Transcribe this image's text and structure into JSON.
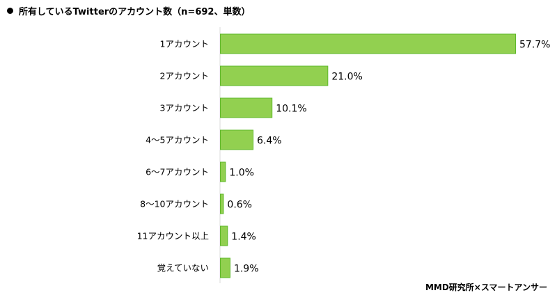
{
  "chart_data": {
    "type": "bar",
    "orientation": "horizontal",
    "title": "所有しているTwitterのアカウント数（n=692、単数）",
    "categories": [
      "1アカウント",
      "2アカウント",
      "3アカウント",
      "4～5アカウント",
      "6～7アカウント",
      "8～10アカウント",
      "11アカウント以上",
      "覚えていない"
    ],
    "values": [
      57.7,
      21.0,
      10.1,
      6.4,
      1.0,
      0.6,
      1.4,
      1.9
    ],
    "value_labels": [
      "57.7%",
      "21.0%",
      "10.1%",
      "6.4%",
      "1.0%",
      "0.6%",
      "1.4%",
      "1.9%"
    ],
    "xlabel": "",
    "ylabel": "",
    "xlim": [
      0,
      57.7
    ],
    "grid": false,
    "colors": {
      "bar_fill": "#92d050",
      "bar_stroke": "#5fb82a",
      "axis": "#d9d9d9"
    }
  },
  "source": "MMD研究所×スマートアンサー"
}
